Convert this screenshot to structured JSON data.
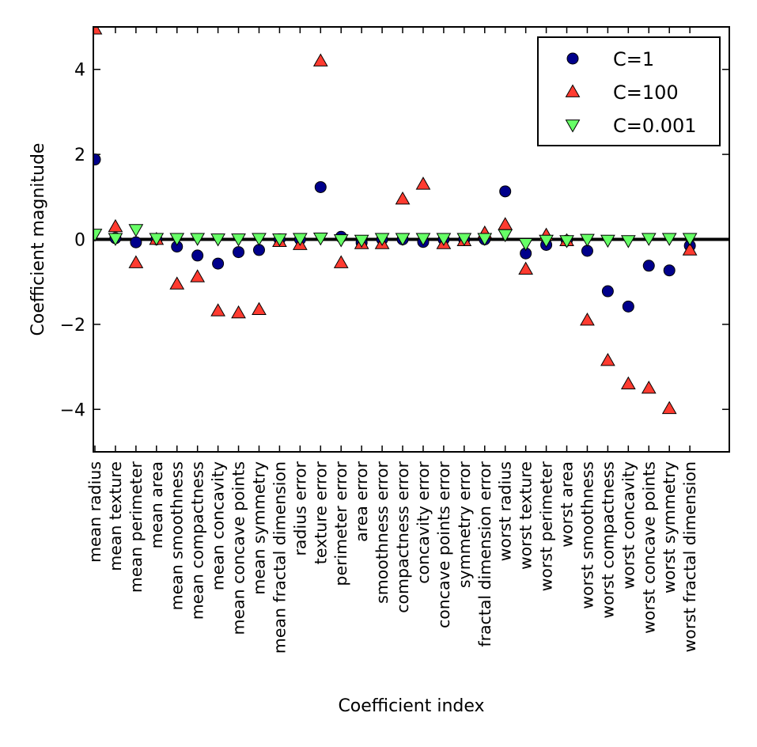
{
  "chart_data": {
    "type": "scatter",
    "xlabel": "Coefficient index",
    "ylabel": "Coefficient magnitude",
    "ylim": [
      -5,
      5
    ],
    "yticks": [
      -4,
      -2,
      0,
      2,
      4
    ],
    "grid": false,
    "legend_position": "top-right",
    "reference_line": 0,
    "categories": [
      "mean radius",
      "mean texture",
      "mean perimeter",
      "mean area",
      "mean smoothness",
      "mean compactness",
      "mean concavity",
      "mean concave points",
      "mean symmetry",
      "mean fractal dimension",
      "radius error",
      "texture error",
      "perimeter error",
      "area error",
      "smoothness error",
      "compactness error",
      "concavity error",
      "concave points error",
      "symmetry error",
      "fractal dimension error",
      "worst radius",
      "worst texture",
      "worst perimeter",
      "worst area",
      "worst smoothness",
      "worst compactness",
      "worst concavity",
      "worst concave points",
      "worst symmetry",
      "worst fractal dimension"
    ],
    "series": [
      {
        "name": "C=1",
        "marker": "circle",
        "color": "#00008b",
        "values": [
          1.88,
          0.03,
          -0.07,
          0.0,
          -0.17,
          -0.38,
          -0.57,
          -0.3,
          -0.25,
          0.0,
          0.0,
          1.23,
          0.06,
          -0.08,
          0.0,
          0.0,
          -0.06,
          0.0,
          0.0,
          0.0,
          1.13,
          -0.33,
          -0.13,
          -0.03,
          -0.27,
          -1.22,
          -1.58,
          -0.62,
          -0.73,
          -0.15
        ]
      },
      {
        "name": "C=100",
        "marker": "triangle-up",
        "color": "#ff3b30",
        "values": [
          4.95,
          0.3,
          -0.55,
          0.0,
          -1.05,
          -0.88,
          -1.68,
          -1.73,
          -1.65,
          -0.05,
          -0.12,
          4.2,
          -0.55,
          -0.1,
          -0.1,
          0.95,
          1.3,
          -0.1,
          -0.03,
          0.15,
          0.35,
          -0.7,
          0.1,
          -0.03,
          -1.9,
          -2.85,
          -3.4,
          -3.5,
          -3.98,
          -0.25
        ]
      },
      {
        "name": "C=0.001",
        "marker": "triangle-down",
        "color": "#66ff66",
        "values": [
          0.12,
          0.02,
          0.23,
          0.02,
          0.02,
          0.02,
          0.01,
          0.01,
          0.02,
          0.01,
          0.02,
          0.03,
          -0.01,
          -0.02,
          0.02,
          0.02,
          0.02,
          0.02,
          0.02,
          0.02,
          0.11,
          -0.1,
          -0.02,
          -0.03,
          0.0,
          -0.02,
          -0.03,
          0.02,
          0.02,
          0.02
        ]
      }
    ]
  }
}
